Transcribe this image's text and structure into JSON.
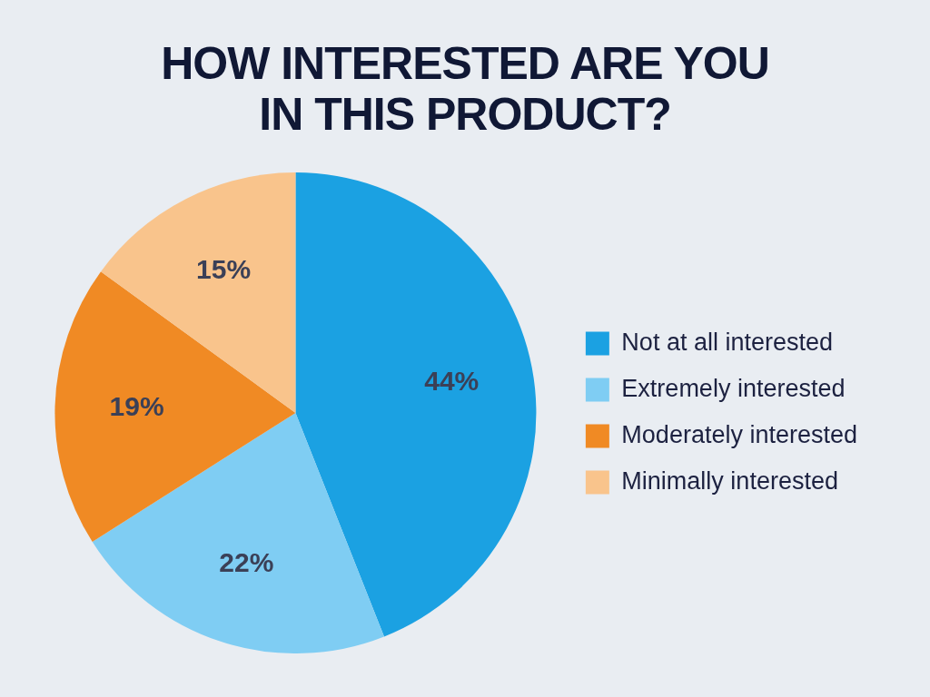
{
  "chart_data": {
    "type": "pie",
    "title": "HOW INTERESTED ARE YOU IN THIS PRODUCT?",
    "categories": [
      "Not at all interested",
      "Extremely interested",
      "Moderately interested",
      "Minimally interested"
    ],
    "values": [
      44,
      22,
      19,
      15
    ],
    "colors": [
      "#1ba1e2",
      "#7fcdf3",
      "#f08a24",
      "#f9c48c"
    ],
    "value_labels": [
      "44%",
      "22%",
      "19%",
      "15%"
    ],
    "legend": "right"
  }
}
